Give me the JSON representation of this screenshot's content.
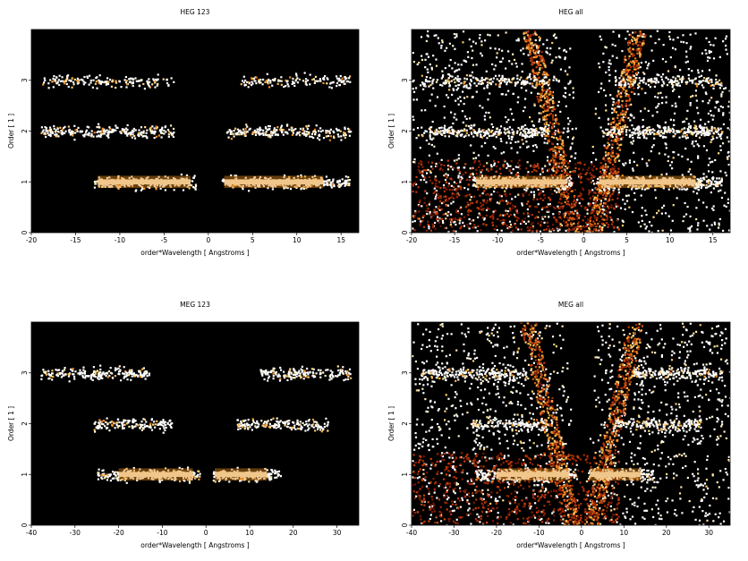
{
  "chart_data": [
    {
      "type": "heatmap",
      "title": "HEG 123",
      "xlabel": "order*Wavelength [ Angstroms ]",
      "ylabel": "Order [ 1 ]",
      "xlim": [
        -20,
        17
      ],
      "ylim": [
        0,
        4
      ],
      "xticks": [
        -20,
        -15,
        -10,
        -5,
        0,
        5,
        10,
        15
      ],
      "yticks": [
        0,
        1,
        2,
        3
      ],
      "background": "#000000",
      "bands": [
        {
          "order": 1,
          "x_ranges": [
            [
              -13,
              -1.5
            ],
            [
              1.5,
              16
            ]
          ],
          "core": [
            [
              -12.5,
              -2
            ],
            [
              1.8,
              13
            ]
          ],
          "intensity": "high"
        },
        {
          "order": 2,
          "x_ranges": [
            [
              -19,
              -4
            ],
            [
              2,
              16
            ]
          ],
          "intensity": "medium"
        },
        {
          "order": 3,
          "x_ranges": [
            [
              -19,
              -4
            ],
            [
              3.5,
              16
            ]
          ],
          "intensity": "low"
        }
      ],
      "wedges": false
    },
    {
      "type": "heatmap",
      "title": "HEG all",
      "xlabel": "order*Wavelength [ Angstroms ]",
      "ylabel": "Order [ 1 ]",
      "xlim": [
        -20,
        17
      ],
      "ylim": [
        0,
        4
      ],
      "xticks": [
        -20,
        -15,
        -10,
        -5,
        0,
        5,
        10,
        15
      ],
      "yticks": [
        0,
        1,
        2,
        3
      ],
      "background": "#000000",
      "bands": [
        {
          "order": 1,
          "x_ranges": [
            [
              -13,
              -1.5
            ],
            [
              1.5,
              16
            ]
          ],
          "core": [
            [
              -12.5,
              -2
            ],
            [
              1.8,
              13
            ]
          ],
          "intensity": "high"
        },
        {
          "order": 2,
          "x_ranges": [
            [
              -19,
              -4
            ],
            [
              2,
              16
            ]
          ],
          "intensity": "medium"
        },
        {
          "order": 3,
          "x_ranges": [
            [
              -19,
              -4
            ],
            [
              3.5,
              16
            ]
          ],
          "intensity": "low"
        }
      ],
      "wedges": true
    },
    {
      "type": "heatmap",
      "title": "MEG 123",
      "xlabel": "order*Wavelength [ Angstroms ]",
      "ylabel": "Order [ 1 ]",
      "xlim": [
        -40,
        35
      ],
      "ylim": [
        0,
        4
      ],
      "xticks": [
        -40,
        -30,
        -20,
        -10,
        0,
        10,
        20,
        30
      ],
      "yticks": [
        0,
        1,
        2,
        3
      ],
      "background": "#000000",
      "bands": [
        {
          "order": 1,
          "x_ranges": [
            [
              -25,
              -1.5
            ],
            [
              1.5,
              17
            ]
          ],
          "core": [
            [
              -20,
              -3
            ],
            [
              2,
              14
            ]
          ],
          "intensity": "high"
        },
        {
          "order": 2,
          "x_ranges": [
            [
              -26,
              -8
            ],
            [
              7,
              28
            ]
          ],
          "intensity": "medium"
        },
        {
          "order": 3,
          "x_ranges": [
            [
              -38,
              -13
            ],
            [
              12,
              33
            ]
          ],
          "intensity": "medium"
        }
      ],
      "wedges": false
    },
    {
      "type": "heatmap",
      "title": "MEG all",
      "xlabel": "order*Wavelength [ Angstroms ]",
      "ylabel": "Order [ 1 ]",
      "xlim": [
        -40,
        35
      ],
      "ylim": [
        0,
        4
      ],
      "xticks": [
        -40,
        -30,
        -20,
        -10,
        0,
        10,
        20,
        30
      ],
      "yticks": [
        0,
        1,
        2,
        3
      ],
      "background": "#000000",
      "bands": [
        {
          "order": 1,
          "x_ranges": [
            [
              -25,
              -1.5
            ],
            [
              1.5,
              17
            ]
          ],
          "core": [
            [
              -20,
              -3
            ],
            [
              2,
              14
            ]
          ],
          "intensity": "high"
        },
        {
          "order": 2,
          "x_ranges": [
            [
              -26,
              -8
            ],
            [
              7,
              28
            ]
          ],
          "intensity": "medium"
        },
        {
          "order": 3,
          "x_ranges": [
            [
              -38,
              -13
            ],
            [
              12,
              33
            ]
          ],
          "intensity": "medium"
        }
      ],
      "wedges": true
    }
  ]
}
